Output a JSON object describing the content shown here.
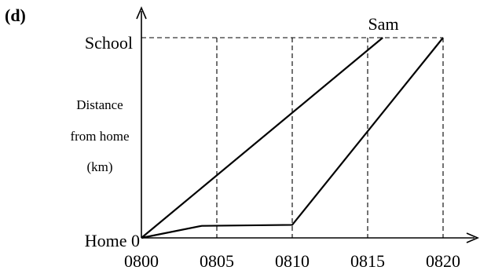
{
  "panel_label": "(d)",
  "chart_data": {
    "type": "line",
    "title": "",
    "xlabel": "",
    "ylabel": [
      "Distance",
      "from home",
      "(km)"
    ],
    "x_ticks": [
      "0800",
      "0805",
      "0810",
      "0815",
      "0820"
    ],
    "y_ticks": [
      "Home 0",
      "School"
    ],
    "xlim": [
      "0800",
      "0820"
    ],
    "ylim": [
      0,
      1
    ],
    "grid": false,
    "guide_lines": {
      "vertical_at": [
        "0805",
        "0810",
        "0815",
        "0820"
      ],
      "horizontal_at": "School"
    },
    "series": [
      {
        "name": "Sam",
        "points": [
          [
            "0800",
            0
          ],
          [
            "0816",
            1
          ]
        ]
      },
      {
        "points": [
          [
            "0800",
            0
          ],
          [
            "0804",
            0.06
          ],
          [
            "0810",
            0.065
          ],
          [
            "0820",
            1
          ]
        ]
      }
    ]
  }
}
